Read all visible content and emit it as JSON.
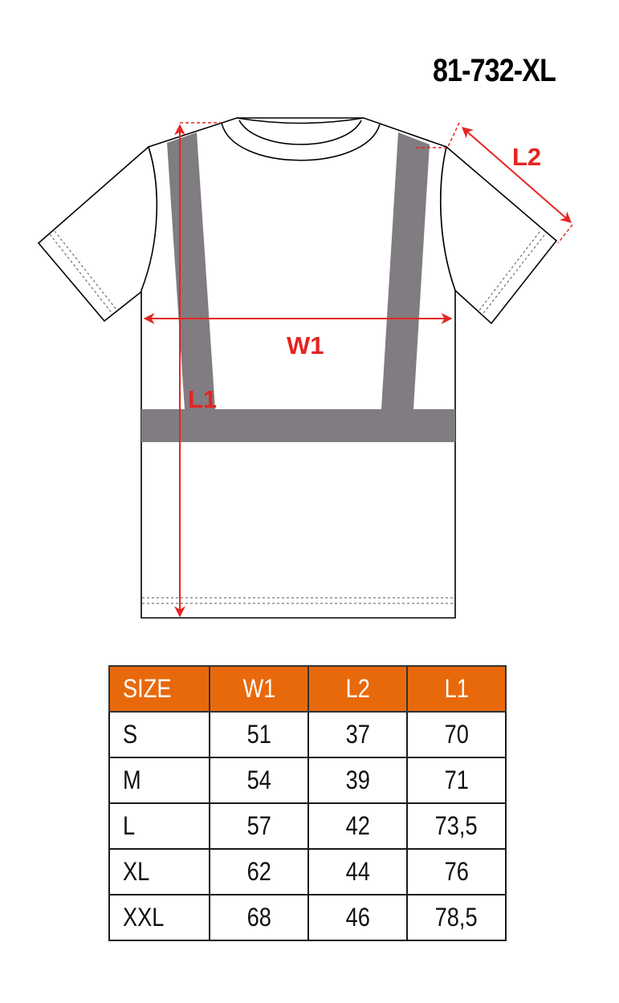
{
  "title": "81-732-XL",
  "labels": {
    "w1": "W1",
    "l1": "L1",
    "l2": "L2"
  },
  "colors": {
    "header": "#e8690b",
    "stripe": "#817c81",
    "measure": "#e52421"
  },
  "table": {
    "headers": [
      "SIZE",
      "W1",
      "L2",
      "L1"
    ],
    "rows": [
      [
        "S",
        "51",
        "37",
        "70"
      ],
      [
        "M",
        "54",
        "39",
        "71"
      ],
      [
        "L",
        "57",
        "42",
        "73,5"
      ],
      [
        "XL",
        "62",
        "44",
        "76"
      ],
      [
        "XXL",
        "68",
        "46",
        "78,5"
      ]
    ]
  }
}
